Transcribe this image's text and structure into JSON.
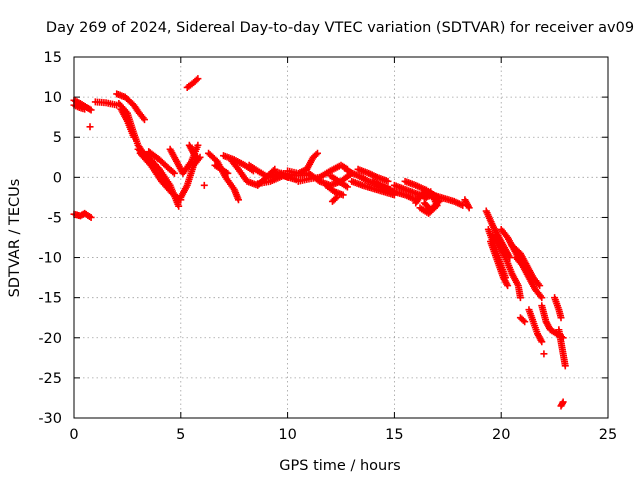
{
  "colors": {
    "series": "#ff0000",
    "grid": "#a0a0a0",
    "axis": "#000000",
    "background": "#ffffff"
  },
  "chart_data": {
    "type": "scatter",
    "title": "Day 269 of 2024, Sidereal Day-to-day VTEC variation (SDTVAR) for receiver av09",
    "xlabel": "GPS time / hours",
    "ylabel": "SDTVAR / TECUs",
    "xlim": [
      0,
      25
    ],
    "ylim": [
      -30,
      15
    ],
    "xticks": [
      "0",
      "5",
      "10",
      "15",
      "20",
      "25"
    ],
    "yticks": [
      "15",
      "10",
      "5",
      "0",
      "-5",
      "-10",
      "-15",
      "-20",
      "-25",
      "-30"
    ],
    "xtick_values": [
      0,
      5,
      10,
      15,
      20,
      25
    ],
    "ytick_values": [
      15,
      10,
      5,
      0,
      -5,
      -10,
      -15,
      -20,
      -25,
      -30
    ],
    "grid": true,
    "marker": "plus",
    "series": [
      {
        "name": "SDTVAR",
        "tracks": [
          [
            [
              0.0,
              9.6
            ],
            [
              0.3,
              9.2
            ],
            [
              0.6,
              8.7
            ],
            [
              0.8,
              8.4
            ]
          ],
          [
            [
              0.0,
              9.0
            ],
            [
              0.25,
              8.7
            ],
            [
              0.5,
              8.5
            ]
          ],
          [
            [
              0.0,
              -4.6
            ],
            [
              0.3,
              -4.8
            ],
            [
              0.5,
              -4.5
            ],
            [
              0.8,
              -5.0
            ]
          ],
          [
            [
              0.75,
              6.3
            ]
          ],
          [
            [
              1.0,
              9.4
            ],
            [
              1.5,
              9.3
            ],
            [
              2.0,
              9.0
            ]
          ],
          [
            [
              2.0,
              10.4
            ],
            [
              2.4,
              10.0
            ],
            [
              2.8,
              9.0
            ],
            [
              3.0,
              8.2
            ],
            [
              3.3,
              7.2
            ]
          ],
          [
            [
              2.1,
              9.2
            ],
            [
              2.5,
              8.0
            ],
            [
              2.8,
              5.5
            ],
            [
              3.0,
              4.0
            ],
            [
              3.3,
              2.8
            ]
          ],
          [
            [
              2.2,
              8.5
            ],
            [
              2.5,
              7.0
            ],
            [
              2.8,
              5.0
            ]
          ],
          [
            [
              3.0,
              3.5
            ],
            [
              3.5,
              2.5
            ],
            [
              4.0,
              1.0
            ],
            [
              4.5,
              -1.0
            ],
            [
              4.9,
              -3.6
            ]
          ],
          [
            [
              3.1,
              3.0
            ],
            [
              3.6,
              1.5
            ],
            [
              4.1,
              -0.5
            ],
            [
              4.6,
              -2.0
            ],
            [
              5.0,
              -2.8
            ]
          ],
          [
            [
              3.5,
              3.2
            ],
            [
              4.0,
              2.2
            ],
            [
              4.4,
              1.2
            ],
            [
              4.7,
              0.5
            ]
          ],
          [
            [
              4.5,
              3.5
            ],
            [
              4.8,
              2.0
            ],
            [
              5.1,
              0.5
            ],
            [
              5.5,
              2.0
            ],
            [
              5.8,
              4.0
            ]
          ],
          [
            [
              5.0,
              -2.5
            ],
            [
              5.3,
              -1.0
            ],
            [
              5.6,
              1.5
            ],
            [
              5.9,
              2.5
            ]
          ],
          [
            [
              5.3,
              11.2
            ],
            [
              5.6,
              11.8
            ],
            [
              5.8,
              12.3
            ]
          ],
          [
            [
              5.4,
              4.0
            ],
            [
              5.6,
              3.0
            ],
            [
              5.8,
              2.3
            ]
          ],
          [
            [
              6.1,
              -1.0
            ]
          ],
          [
            [
              6.3,
              3.0
            ],
            [
              6.7,
              2.0
            ],
            [
              7.1,
              0.0
            ],
            [
              7.5,
              -1.5
            ],
            [
              7.7,
              -2.8
            ]
          ],
          [
            [
              6.6,
              1.5
            ],
            [
              6.9,
              1.0
            ],
            [
              7.2,
              0.5
            ]
          ],
          [
            [
              7.0,
              2.7
            ],
            [
              7.5,
              2.2
            ],
            [
              8.0,
              1.5
            ],
            [
              8.4,
              0.8
            ]
          ],
          [
            [
              7.4,
              2.0
            ],
            [
              7.7,
              1.0
            ],
            [
              8.1,
              -0.5
            ],
            [
              8.6,
              -1.0
            ],
            [
              9.0,
              0.0
            ],
            [
              9.4,
              1.0
            ]
          ],
          [
            [
              8.2,
              1.5
            ],
            [
              8.6,
              0.8
            ],
            [
              9.1,
              0.0
            ],
            [
              9.6,
              0.5
            ],
            [
              10.0,
              0.0
            ]
          ],
          [
            [
              8.6,
              -0.8
            ],
            [
              9.2,
              -0.5
            ],
            [
              9.8,
              0.2
            ],
            [
              10.4,
              -0.3
            ]
          ],
          [
            [
              9.5,
              0.6
            ],
            [
              10.0,
              0.4
            ],
            [
              10.5,
              0.2
            ],
            [
              11.0,
              0.3
            ]
          ],
          [
            [
              10.0,
              0.8
            ],
            [
              10.5,
              0.5
            ],
            [
              10.9,
              1.0
            ],
            [
              11.2,
              2.5
            ],
            [
              11.4,
              3.0
            ]
          ],
          [
            [
              10.5,
              -0.5
            ],
            [
              11.0,
              -0.2
            ],
            [
              11.5,
              0.0
            ]
          ],
          [
            [
              11.0,
              0.5
            ],
            [
              11.5,
              -0.5
            ],
            [
              12.0,
              -1.0
            ],
            [
              12.5,
              -0.5
            ],
            [
              13.0,
              0.5
            ]
          ],
          [
            [
              11.5,
              0.0
            ],
            [
              12.0,
              0.8
            ],
            [
              12.5,
              1.5
            ],
            [
              12.8,
              1.0
            ]
          ],
          [
            [
              11.8,
              -1.0
            ],
            [
              12.2,
              -1.8
            ],
            [
              12.6,
              -2.2
            ]
          ],
          [
            [
              12.0,
              0.2
            ],
            [
              12.4,
              -0.5
            ],
            [
              12.8,
              -1.2
            ]
          ],
          [
            [
              12.1,
              -3.0
            ],
            [
              12.3,
              -2.5
            ]
          ],
          [
            [
              12.8,
              0.8
            ],
            [
              13.3,
              0.2
            ],
            [
              13.8,
              -0.5
            ],
            [
              14.3,
              -1.0
            ],
            [
              14.8,
              -1.5
            ]
          ],
          [
            [
              13.0,
              -0.5
            ],
            [
              13.5,
              -1.0
            ],
            [
              14.0,
              -1.4
            ],
            [
              14.5,
              -1.8
            ],
            [
              15.0,
              -2.2
            ]
          ],
          [
            [
              13.3,
              1.0
            ],
            [
              13.8,
              0.5
            ],
            [
              14.2,
              0.0
            ],
            [
              14.7,
              -0.5
            ]
          ],
          [
            [
              14.0,
              -0.5
            ],
            [
              14.5,
              -1.2
            ],
            [
              15.0,
              -1.8
            ],
            [
              15.5,
              -2.2
            ],
            [
              16.0,
              -2.8
            ]
          ],
          [
            [
              15.0,
              -1.0
            ],
            [
              15.5,
              -1.5
            ],
            [
              16.0,
              -2.0
            ],
            [
              16.5,
              -2.5
            ]
          ],
          [
            [
              15.5,
              -0.5
            ],
            [
              16.0,
              -1.0
            ],
            [
              16.5,
              -1.6
            ],
            [
              17.0,
              -2.5
            ]
          ],
          [
            [
              16.0,
              -3.2
            ],
            [
              16.3,
              -2.0
            ],
            [
              16.7,
              -1.8
            ],
            [
              17.0,
              -3.5
            ],
            [
              16.6,
              -4.5
            ],
            [
              16.2,
              -3.8
            ]
          ],
          [
            [
              16.4,
              -2.5
            ],
            [
              16.8,
              -2.2
            ],
            [
              17.1,
              -3.0
            ],
            [
              16.7,
              -4.0
            ],
            [
              16.4,
              -3.2
            ]
          ],
          [
            [
              16.8,
              -2.2
            ],
            [
              17.3,
              -2.6
            ],
            [
              17.8,
              -3.0
            ],
            [
              18.2,
              -3.5
            ]
          ],
          [
            [
              18.3,
              -2.8
            ],
            [
              18.5,
              -3.8
            ]
          ],
          [
            [
              19.3,
              -4.2
            ],
            [
              19.6,
              -6.0
            ],
            [
              19.9,
              -7.5
            ],
            [
              20.2,
              -9.0
            ],
            [
              20.4,
              -10.0
            ]
          ],
          [
            [
              19.4,
              -6.5
            ],
            [
              19.6,
              -8.0
            ],
            [
              19.8,
              -9.5
            ],
            [
              20.0,
              -11.0
            ],
            [
              20.2,
              -12.5
            ]
          ],
          [
            [
              19.5,
              -8.0
            ],
            [
              19.7,
              -9.5
            ],
            [
              19.9,
              -11.0
            ],
            [
              20.1,
              -12.5
            ],
            [
              20.3,
              -13.5
            ]
          ],
          [
            [
              19.6,
              -7.2
            ],
            [
              19.9,
              -8.5
            ],
            [
              20.2,
              -10.0
            ],
            [
              20.5,
              -12.0
            ],
            [
              20.8,
              -13.5
            ],
            [
              20.9,
              -15.0
            ]
          ],
          [
            [
              20.0,
              -6.5
            ],
            [
              20.3,
              -7.5
            ],
            [
              20.6,
              -9.0
            ],
            [
              20.9,
              -10.5
            ]
          ],
          [
            [
              20.5,
              -8.5
            ],
            [
              20.9,
              -9.5
            ],
            [
              21.2,
              -11.0
            ],
            [
              21.5,
              -12.5
            ],
            [
              21.8,
              -13.5
            ]
          ],
          [
            [
              20.7,
              -10.0
            ],
            [
              21.0,
              -11.0
            ],
            [
              21.3,
              -12.5
            ],
            [
              21.6,
              -14.0
            ],
            [
              21.9,
              -15.0
            ]
          ],
          [
            [
              20.9,
              -17.5
            ],
            [
              21.1,
              -18.0
            ]
          ],
          [
            [
              21.3,
              -16.5
            ],
            [
              21.5,
              -18.0
            ],
            [
              21.7,
              -19.5
            ],
            [
              21.9,
              -20.5
            ]
          ],
          [
            [
              21.9,
              -16.0
            ],
            [
              22.1,
              -18.0
            ],
            [
              22.3,
              -19.0
            ],
            [
              22.6,
              -19.5
            ],
            [
              22.9,
              -20.0
            ]
          ],
          [
            [
              22.0,
              -22.0
            ]
          ],
          [
            [
              22.5,
              -15.0
            ],
            [
              22.7,
              -16.5
            ],
            [
              22.8,
              -17.5
            ]
          ],
          [
            [
              22.7,
              -19.0
            ],
            [
              22.8,
              -20.5
            ],
            [
              22.9,
              -22.0
            ],
            [
              23.0,
              -23.5
            ]
          ],
          [
            [
              22.8,
              -28.5
            ],
            [
              22.9,
              -28.0
            ]
          ]
        ]
      }
    ]
  }
}
